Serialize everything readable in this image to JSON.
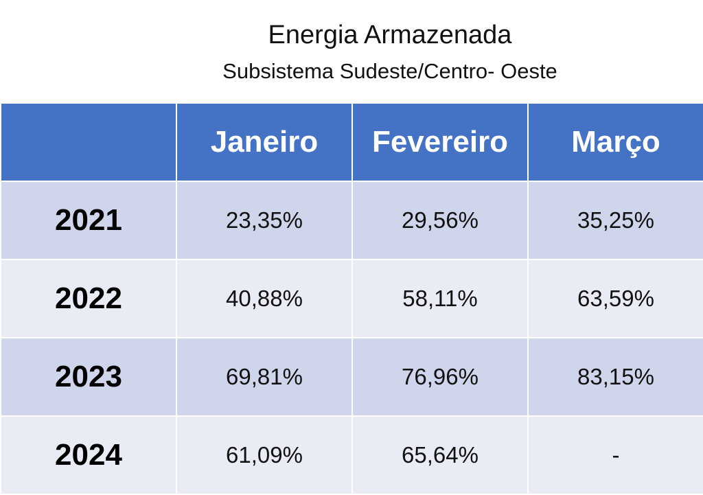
{
  "chart_data": {
    "type": "table",
    "title": "Energia Armazenada",
    "subtitle": "Subsistema Sudeste/Centro- Oeste",
    "columns": [
      "",
      "Janeiro",
      "Fevereiro",
      "Março"
    ],
    "rows": [
      {
        "year": "2021",
        "values": [
          "23,35%",
          "29,56%",
          "35,25%"
        ]
      },
      {
        "year": "2022",
        "values": [
          "40,88%",
          "58,11%",
          "63,59%"
        ]
      },
      {
        "year": "2023",
        "values": [
          "69,81%",
          "76,96%",
          "83,15%"
        ]
      },
      {
        "year": "2024",
        "values": [
          "61,09%",
          "65,64%",
          "-"
        ]
      }
    ],
    "colors": {
      "header": "#4472c4",
      "row_odd": "#cfd5ea",
      "row_even": "#e9ebf5"
    }
  }
}
